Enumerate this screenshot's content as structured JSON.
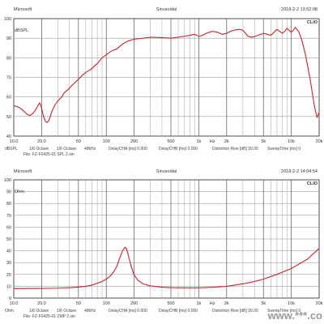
{
  "watermark": "www.***.co",
  "chart_data": [
    {
      "type": "line",
      "header": {
        "left": "Microsoft",
        "center": "Sinusoidal",
        "right": "2018-2-2 13:52:08",
        "corner": "CLIO"
      },
      "y_unit": "dBSPL",
      "xlim": [
        10,
        20000
      ],
      "ylim": [
        40,
        100
      ],
      "x_scale": "log",
      "x_ticks": [
        {
          "v": 10,
          "t": "10.0"
        },
        {
          "v": 20,
          "t": "20.0"
        },
        {
          "v": 50,
          "t": "50"
        },
        {
          "v": 100,
          "t": "100"
        },
        {
          "v": 200,
          "t": "200"
        },
        {
          "v": 500,
          "t": "500"
        },
        {
          "v": 1000,
          "t": "1k"
        },
        {
          "v": 2000,
          "t": "2k"
        },
        {
          "v": 5000,
          "t": "5k"
        },
        {
          "v": 10000,
          "t": "10k"
        },
        {
          "v": 20000,
          "t": "20k"
        }
      ],
      "x_unit": "Hz",
      "y_ticks": [
        100,
        90,
        80,
        70,
        60,
        50,
        40
      ],
      "series": [
        {
          "color": "#c0272d",
          "points": [
            [
              10,
              55.5
            ],
            [
              11,
              55
            ],
            [
              12,
              54
            ],
            [
              13,
              52.5
            ],
            [
              14,
              51
            ],
            [
              15,
              50.5
            ],
            [
              16,
              51.5
            ],
            [
              17,
              53
            ],
            [
              18,
              55
            ],
            [
              19,
              57
            ],
            [
              19.5,
              56
            ],
            [
              20,
              54
            ],
            [
              21,
              50
            ],
            [
              22,
              47.5
            ],
            [
              23,
              47
            ],
            [
              24,
              48
            ],
            [
              25,
              50.5
            ],
            [
              26,
              53
            ],
            [
              28,
              56
            ],
            [
              30,
              58
            ],
            [
              33,
              60
            ],
            [
              35,
              62
            ],
            [
              38,
              63.5
            ],
            [
              40,
              64.5
            ],
            [
              45,
              67
            ],
            [
              50,
              69
            ],
            [
              55,
              71
            ],
            [
              60,
              72.5
            ],
            [
              65,
              73.5
            ],
            [
              70,
              74.5
            ],
            [
              75,
              76
            ],
            [
              80,
              77
            ],
            [
              90,
              80
            ],
            [
              100,
              81.5
            ],
            [
              110,
              83
            ],
            [
              120,
              84
            ],
            [
              130,
              84.5
            ],
            [
              150,
              87
            ],
            [
              170,
              88.5
            ],
            [
              200,
              89.5
            ],
            [
              250,
              90
            ],
            [
              300,
              90.5
            ],
            [
              400,
              90.3
            ],
            [
              500,
              90
            ],
            [
              600,
              90.5
            ],
            [
              700,
              91
            ],
            [
              800,
              91.5
            ],
            [
              900,
              92
            ],
            [
              1000,
              91
            ],
            [
              1100,
              91.5
            ],
            [
              1200,
              92.5
            ],
            [
              1400,
              93.5
            ],
            [
              1600,
              93
            ],
            [
              1800,
              92
            ],
            [
              2000,
              92.5
            ],
            [
              2200,
              93.5
            ],
            [
              2500,
              94.3
            ],
            [
              2800,
              94.5
            ],
            [
              3000,
              94
            ],
            [
              3200,
              92.5
            ],
            [
              3400,
              91
            ],
            [
              3700,
              90.5
            ],
            [
              4000,
              90.8
            ],
            [
              4400,
              91.5
            ],
            [
              5000,
              92.5
            ],
            [
              5500,
              92
            ],
            [
              6000,
              91.5
            ],
            [
              6500,
              93
            ],
            [
              7000,
              94.5
            ],
            [
              7500,
              93.5
            ],
            [
              8000,
              92.5
            ],
            [
              8500,
              93.5
            ],
            [
              9000,
              95
            ],
            [
              9500,
              94
            ],
            [
              10000,
              93
            ],
            [
              10500,
              94
            ],
            [
              11000,
              95.5
            ],
            [
              12000,
              93.5
            ],
            [
              13000,
              89
            ],
            [
              14000,
              83
            ],
            [
              15000,
              76
            ],
            [
              16000,
              69
            ],
            [
              17000,
              61
            ],
            [
              18000,
              54
            ],
            [
              19000,
              49.5
            ],
            [
              20000,
              52
            ]
          ]
        }
      ],
      "footer_row1": [
        "dBSPL",
        "1/6 Octave",
        "1/6 Octave",
        "48kHz",
        "DelayCHA [ms] 0.000",
        "DelayCHB [ms] 0.000",
        "Distortion Rise [dB] 30.00",
        "SweepTime [ms] 0"
      ],
      "footer_row2": "File: FZ-F0425-01 SPL 2.sin"
    },
    {
      "type": "line",
      "header": {
        "left": "Microsoft",
        "center": "Sinusoidal",
        "right": "2018-2-2 14:04:54",
        "corner": "CLIO"
      },
      "y_unit": "Ohm",
      "xlim": [
        10,
        20000
      ],
      "ylim": [
        0,
        100
      ],
      "x_scale": "log",
      "x_ticks": [
        {
          "v": 10,
          "t": "10.0"
        },
        {
          "v": 20,
          "t": "20.0"
        },
        {
          "v": 50,
          "t": "50"
        },
        {
          "v": 100,
          "t": "100"
        },
        {
          "v": 200,
          "t": "200"
        },
        {
          "v": 500,
          "t": "500"
        },
        {
          "v": 1000,
          "t": "1k"
        },
        {
          "v": 2000,
          "t": "2k"
        },
        {
          "v": 5000,
          "t": "5k"
        },
        {
          "v": 10000,
          "t": "10k"
        },
        {
          "v": 20000,
          "t": "20k"
        }
      ],
      "x_unit": "Hz",
      "y_ticks": [
        100,
        90,
        80,
        70,
        60,
        50,
        40,
        30,
        20,
        10,
        0
      ],
      "series": [
        {
          "color": "#c0272d",
          "points": [
            [
              10,
              8
            ],
            [
              20,
              8.2
            ],
            [
              30,
              8.4
            ],
            [
              40,
              8.8
            ],
            [
              50,
              9.3
            ],
            [
              60,
              10
            ],
            [
              70,
              11
            ],
            [
              80,
              12.5
            ],
            [
              90,
              14
            ],
            [
              100,
              16
            ],
            [
              110,
              18.5
            ],
            [
              120,
              22
            ],
            [
              130,
              27
            ],
            [
              140,
              34
            ],
            [
              150,
              40
            ],
            [
              160,
              43
            ],
            [
              165,
              42
            ],
            [
              170,
              38.5
            ],
            [
              180,
              31
            ],
            [
              190,
              24.5
            ],
            [
              200,
              19.5
            ],
            [
              220,
              15
            ],
            [
              250,
              12
            ],
            [
              300,
              10.3
            ],
            [
              400,
              9.2
            ],
            [
              500,
              8.8
            ],
            [
              700,
              8.6
            ],
            [
              1000,
              8.6
            ],
            [
              1500,
              9.2
            ],
            [
              2000,
              10
            ],
            [
              3000,
              12
            ],
            [
              4000,
              14
            ],
            [
              5000,
              16
            ],
            [
              7000,
              20
            ],
            [
              10000,
              25
            ],
            [
              15000,
              33
            ],
            [
              20000,
              42
            ]
          ]
        }
      ],
      "footer_row1": [
        "Ohm",
        "1/6 Octave",
        "1/6 Octave",
        "48kHz",
        "DelayCHA [ms] 0.000",
        "DelayCHB [ms] 0.000",
        "Distortion Rise [dB] 30.00",
        "SweepTime [ms] 0"
      ],
      "footer_row2": "File: FZ-F0425-01 ZMP 2.sin"
    }
  ]
}
